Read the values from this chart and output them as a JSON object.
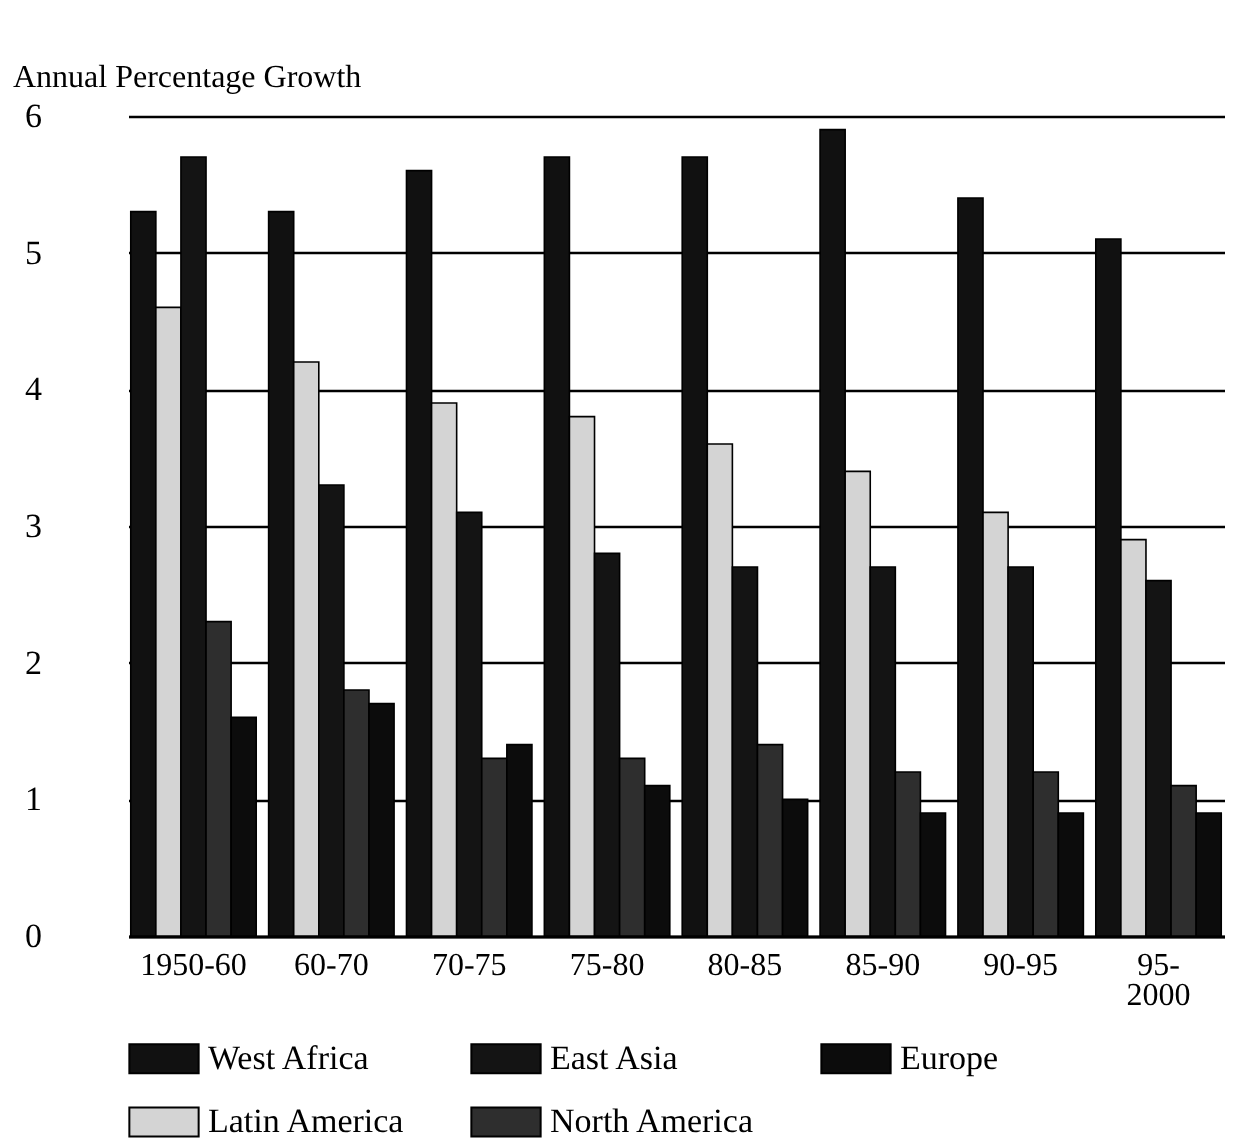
{
  "chart_data": {
    "type": "bar",
    "ylabel": "Annual Percentage Growth",
    "categories": [
      "1950-60",
      "60-70",
      "70-75",
      "75-80",
      "80-85",
      "85-90",
      "90-95",
      "95-2000"
    ],
    "series": [
      {
        "name": "West Africa",
        "color": "#111111",
        "values": [
          5.3,
          5.3,
          5.6,
          5.7,
          5.7,
          5.9,
          5.4,
          5.1
        ]
      },
      {
        "name": "Latin America",
        "color": "#d4d4d4",
        "values": [
          4.6,
          4.2,
          3.9,
          3.8,
          3.6,
          3.4,
          3.1,
          2.9
        ]
      },
      {
        "name": "East Asia",
        "color": "#141414",
        "values": [
          5.7,
          3.3,
          3.1,
          2.8,
          2.7,
          2.7,
          2.7,
          2.6
        ]
      },
      {
        "name": "North America",
        "color": "#2e2e2e",
        "values": [
          2.3,
          1.8,
          1.3,
          1.3,
          1.4,
          1.2,
          1.2,
          1.1
        ]
      },
      {
        "name": "Europe",
        "color": "#0c0c0c",
        "values": [
          1.6,
          1.7,
          1.4,
          1.1,
          1.0,
          0.9,
          0.9,
          0.9
        ]
      }
    ],
    "ylim": [
      0,
      6
    ],
    "yticks": [
      0,
      1,
      2,
      3,
      4,
      5,
      6
    ],
    "grid": "y",
    "legend": "bottom"
  }
}
